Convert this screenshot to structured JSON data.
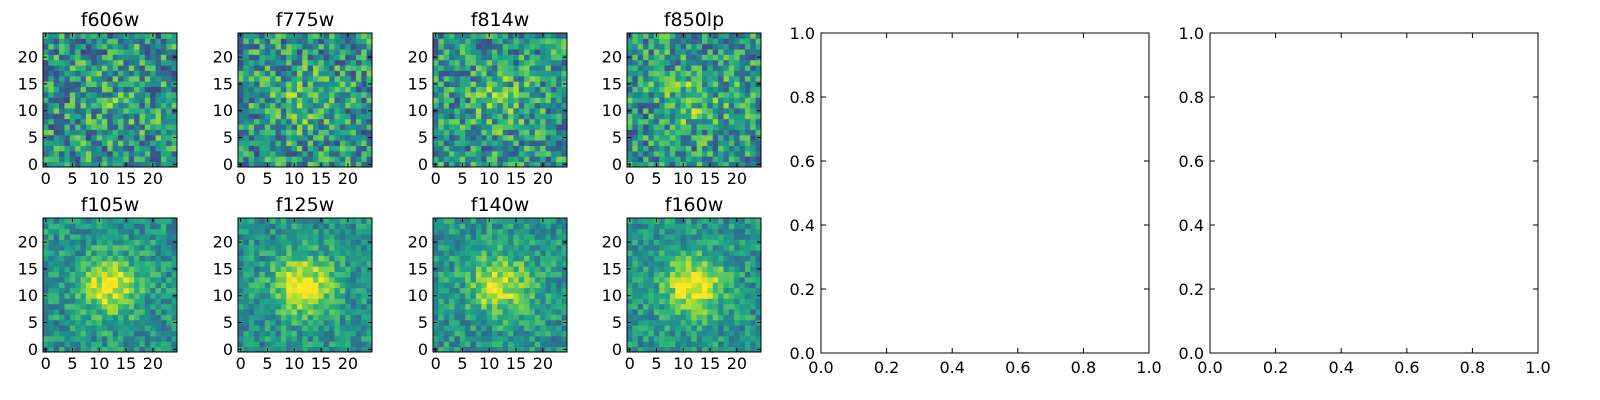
{
  "chart_data": {
    "type": "heatmap",
    "colormap": "viridis",
    "image_size": [
      25,
      25
    ],
    "image_ticks": [
      0,
      5,
      10,
      15,
      20
    ],
    "panels": [
      {
        "title": "f606w",
        "seed": 11,
        "peak": 0.1,
        "noise": 0.62
      },
      {
        "title": "f775w",
        "seed": 23,
        "peak": 0.16,
        "noise": 0.6
      },
      {
        "title": "f814w",
        "seed": 37,
        "peak": 0.18,
        "noise": 0.58
      },
      {
        "title": "f850lp",
        "seed": 41,
        "peak": 0.2,
        "noise": 0.58
      },
      {
        "title": "f105w",
        "seed": 53,
        "peak": 0.45,
        "noise": 0.36
      },
      {
        "title": "f125w",
        "seed": 67,
        "peak": 0.48,
        "noise": 0.34
      },
      {
        "title": "f140w",
        "seed": 79,
        "peak": 0.42,
        "noise": 0.36
      },
      {
        "title": "f160w",
        "seed": 97,
        "peak": 0.5,
        "noise": 0.34
      }
    ],
    "empty_axes": [
      {
        "xlim": [
          0.0,
          1.0
        ],
        "ylim": [
          0.0,
          1.0
        ],
        "xticks": [
          "0.0",
          "0.2",
          "0.4",
          "0.6",
          "0.8",
          "1.0"
        ],
        "yticks": [
          "0.0",
          "0.2",
          "0.4",
          "0.6",
          "0.8",
          "1.0"
        ]
      },
      {
        "xlim": [
          0.0,
          1.0
        ],
        "ylim": [
          0.0,
          1.0
        ],
        "xticks": [
          "0.0",
          "0.2",
          "0.4",
          "0.6",
          "0.8",
          "1.0"
        ],
        "yticks": [
          "0.0",
          "0.2",
          "0.4",
          "0.6",
          "0.8",
          "1.0"
        ]
      }
    ]
  }
}
